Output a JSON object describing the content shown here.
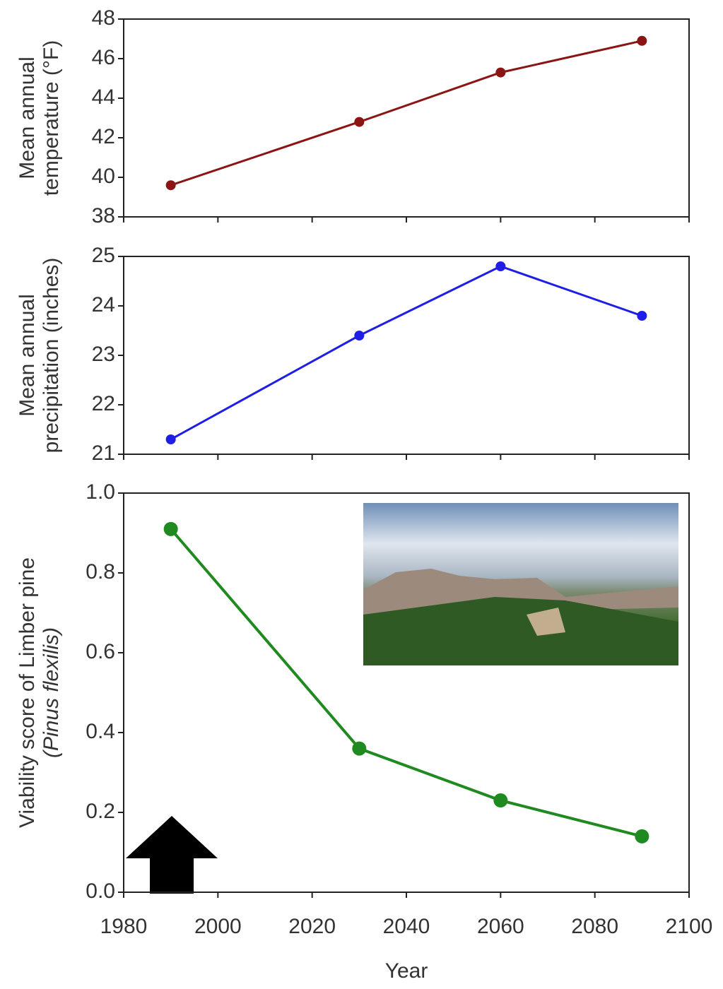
{
  "chart_data": [
    {
      "type": "line",
      "ylabel": [
        "Mean annual",
        "temperature (°F)"
      ],
      "x": [
        1990,
        2030,
        2060,
        2090
      ],
      "series": [
        {
          "color": "#8b1414",
          "values": [
            39.6,
            42.8,
            45.3,
            46.9
          ]
        }
      ],
      "xlim": [
        1980,
        2100
      ],
      "xticks": [
        1980,
        2000,
        2020,
        2040,
        2060,
        2080,
        2100
      ],
      "ylim": [
        38,
        48
      ],
      "yticks": [
        38,
        40,
        42,
        44,
        46,
        48
      ]
    },
    {
      "type": "line",
      "ylabel": [
        "Mean annual",
        "precipitation (inches)"
      ],
      "x": [
        1990,
        2030,
        2060,
        2090
      ],
      "series": [
        {
          "color": "#1e1ee6",
          "values": [
            21.3,
            23.4,
            24.8,
            23.8
          ]
        }
      ],
      "xlim": [
        1980,
        2100
      ],
      "xticks": [
        1980,
        2000,
        2020,
        2040,
        2060,
        2080,
        2100
      ],
      "ylim": [
        21,
        25
      ],
      "yticks": [
        21,
        22,
        23,
        24,
        25
      ]
    },
    {
      "type": "line",
      "ylabel": [
        "Viability score of Limber pine",
        "(Pinus flexilis)"
      ],
      "xlabel": "Year",
      "x": [
        1990,
        2030,
        2060,
        2090
      ],
      "series": [
        {
          "color": "#1f8a1f",
          "values": [
            0.91,
            0.36,
            0.23,
            0.14
          ]
        }
      ],
      "xlim": [
        1980,
        2100
      ],
      "xticks": [
        1980,
        2000,
        2020,
        2040,
        2060,
        2080,
        2100
      ],
      "ylim": [
        0,
        1
      ],
      "yticks": [
        {
          "value": 0,
          "label": "0.0"
        },
        0.2,
        0.4,
        0.6,
        0.8,
        {
          "value": 1,
          "label": "1.0"
        }
      ]
    }
  ]
}
